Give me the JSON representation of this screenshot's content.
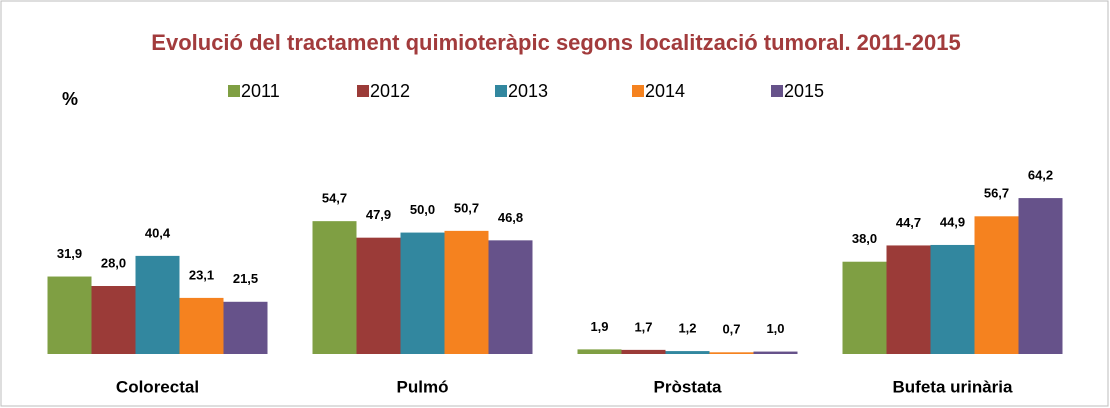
{
  "chart_data": {
    "type": "bar",
    "title": "Evolució del tractament quimioteràpic  segons localització tumoral. 2011-2015",
    "y_label": "%",
    "categories": [
      "Colorectal",
      "Pulmó",
      "Pròstata",
      "Bufeta urinària"
    ],
    "series": [
      {
        "name": "2011",
        "color": "#7f9f43",
        "values": [
          31.9,
          54.7,
          1.9,
          38.0
        ],
        "value_labels": [
          "31,9",
          "54,7",
          "1,9",
          "38,0"
        ]
      },
      {
        "name": "2012",
        "color": "#9b3b38",
        "values": [
          28.0,
          47.9,
          1.7,
          44.7
        ],
        "value_labels": [
          "28,0",
          "47,9",
          "1,7",
          "44,7"
        ]
      },
      {
        "name": "2013",
        "color": "#32879f",
        "values": [
          40.4,
          50.0,
          1.2,
          44.9
        ],
        "value_labels": [
          "40,4",
          "50,0",
          "1,2",
          "44,9"
        ]
      },
      {
        "name": "2014",
        "color": "#f5821f",
        "values": [
          23.1,
          50.7,
          0.7,
          56.7
        ],
        "value_labels": [
          "23,1",
          "50,7",
          "0,7",
          "56,7"
        ]
      },
      {
        "name": "2015",
        "color": "#66528a",
        "values": [
          21.5,
          46.8,
          1.0,
          64.2
        ],
        "value_labels": [
          "21,5",
          "46,8",
          "1,0",
          "64,2"
        ]
      }
    ],
    "ylim": [
      0,
      70
    ]
  }
}
